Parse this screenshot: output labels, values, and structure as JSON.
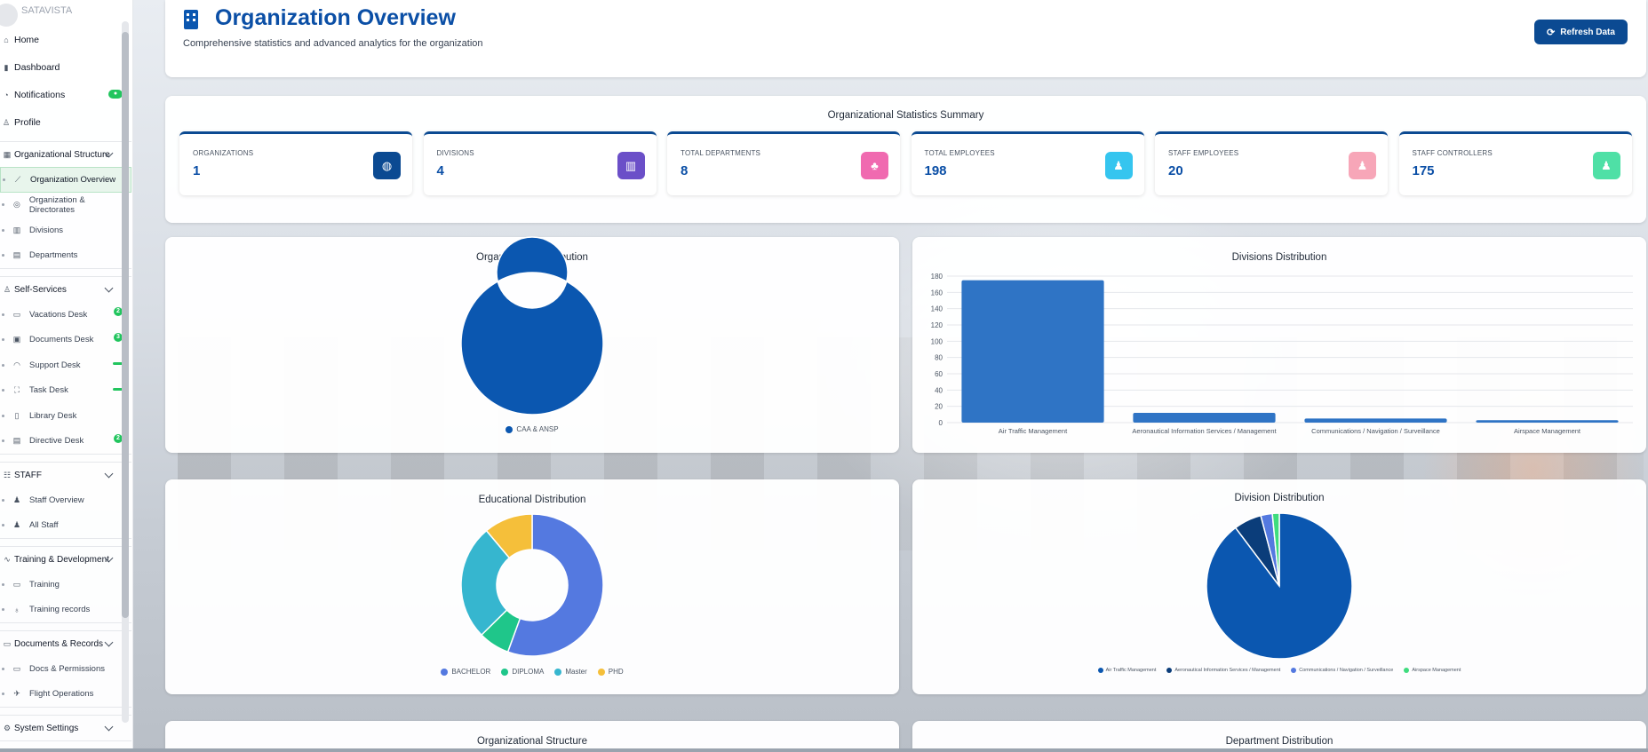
{
  "brand": {
    "name": "SATAVISTA"
  },
  "sidebar": {
    "top": [
      {
        "label": "Home",
        "icon": "home-icon",
        "glyph": "⌂"
      },
      {
        "label": "Dashboard",
        "icon": "chart-icon",
        "glyph": "▮"
      },
      {
        "label": "Notifications",
        "icon": "bell-icon",
        "glyph": "◔",
        "badge": "●"
      },
      {
        "label": "Profile",
        "icon": "user-icon",
        "glyph": "♙"
      }
    ],
    "groups": [
      {
        "label": "Organizational Structure",
        "icon": "building-icon",
        "glyph": "▦",
        "items": [
          {
            "label": "Organization Overview",
            "icon": "line-chart-icon",
            "glyph": "⟋",
            "active": true
          },
          {
            "label": "Organization & Directorates",
            "icon": "globe-icon",
            "glyph": "◎"
          },
          {
            "label": "Divisions",
            "icon": "building-icon",
            "glyph": "▥"
          },
          {
            "label": "Departments",
            "icon": "department-icon",
            "glyph": "▤"
          }
        ]
      },
      {
        "label": "Self-Services",
        "icon": "user-cog-icon",
        "glyph": "♙",
        "items": [
          {
            "label": "Vacations Desk",
            "icon": "calendar-icon",
            "glyph": "▭",
            "badge": "2"
          },
          {
            "label": "Documents Desk",
            "icon": "document-icon",
            "glyph": "▣",
            "badge": "3"
          },
          {
            "label": "Support Desk",
            "icon": "headset-icon",
            "glyph": "◠",
            "badge": "dash"
          },
          {
            "label": "Task Desk",
            "icon": "sitemap-icon",
            "glyph": "⛶",
            "badge": "dash"
          },
          {
            "label": "Library Desk",
            "icon": "book-icon",
            "glyph": "▯"
          },
          {
            "label": "Directive Desk",
            "icon": "file-icon",
            "glyph": "▤",
            "badge": "2"
          }
        ]
      },
      {
        "label": "STAFF",
        "icon": "users-icon",
        "glyph": "☷",
        "items": [
          {
            "label": "Staff Overview",
            "icon": "user-tie-icon",
            "glyph": "♟"
          },
          {
            "label": "All Staff",
            "icon": "users-icon",
            "glyph": "♟"
          }
        ]
      },
      {
        "label": "Training & Development",
        "icon": "activity-icon",
        "glyph": "∿",
        "items": [
          {
            "label": "Training",
            "icon": "calendar-icon",
            "glyph": "▭"
          },
          {
            "label": "Training records",
            "icon": "medal-icon",
            "glyph": "♁"
          }
        ]
      },
      {
        "label": "Documents & Records",
        "icon": "folder-icon",
        "glyph": "▭",
        "items": [
          {
            "label": "Docs & Permissions",
            "icon": "id-card-icon",
            "glyph": "▭"
          },
          {
            "label": "Flight Operations",
            "icon": "plane-icon",
            "glyph": "✈"
          }
        ]
      },
      {
        "label": "System Settings",
        "icon": "gear-icon",
        "glyph": "⚙",
        "items": []
      }
    ]
  },
  "header": {
    "title": "Organization Overview",
    "subtitle": "Comprehensive statistics and advanced analytics for the organization",
    "refresh_label": "Refresh Data",
    "refresh_icon": "⟳"
  },
  "summary": {
    "title": "Organizational Statistics Summary",
    "stats": [
      {
        "label": "ORGANIZATIONS",
        "value": "1",
        "icon": "globe-icon",
        "glyph": "◍",
        "color": "#0b4a92"
      },
      {
        "label": "DIVISIONS",
        "value": "4",
        "icon": "building-icon",
        "glyph": "▥",
        "color": "#6b4fc8"
      },
      {
        "label": "TOTAL DEPARTMENTS",
        "value": "8",
        "icon": "sitemap-icon",
        "glyph": "♣",
        "color": "#f06ab0"
      },
      {
        "label": "TOTAL EMPLOYEES",
        "value": "198",
        "icon": "users-icon",
        "glyph": "♟",
        "color": "#35c5ef"
      },
      {
        "label": "STAFF EMPLOYEES",
        "value": "20",
        "icon": "user-icon",
        "glyph": "♟",
        "color": "#f7a6b8"
      },
      {
        "label": "STAFF CONTROLLERS",
        "value": "175",
        "icon": "users-icon",
        "glyph": "♟",
        "color": "#4fe0a6"
      }
    ]
  },
  "chart_data": [
    {
      "type": "pie",
      "title": "Organization Distribution",
      "donut": true,
      "categories": [
        "CAA & ANSP"
      ],
      "values": [
        1
      ],
      "colors": [
        "#0b57b0"
      ],
      "legend": "bottom"
    },
    {
      "type": "bar",
      "title": "Divisions Distribution",
      "categories": [
        "Air Traffic Management",
        "Aeronautical Information Services / Management",
        "Communications / Navigation / Surveillance",
        "Airspace Management"
      ],
      "values": [
        175,
        12,
        5,
        3
      ],
      "ylim": [
        0,
        180
      ],
      "yticks": [
        0,
        20,
        40,
        60,
        80,
        100,
        120,
        140,
        160,
        180
      ],
      "grid": true,
      "color": "#2f74c5"
    },
    {
      "type": "pie",
      "title": "Educational Distribution",
      "donut": true,
      "categories": [
        "BACHELOR",
        "DIPLOMA",
        "Master",
        "PHD"
      ],
      "values": [
        110,
        14,
        52,
        22
      ],
      "colors": [
        "#5479e0",
        "#1fc68a",
        "#36b6cf",
        "#f5bf3a"
      ],
      "legend": "bottom"
    },
    {
      "type": "pie",
      "title": "Division Distribution",
      "donut": false,
      "categories": [
        "Air Traffic Management",
        "Aeronautical Information Services / Management",
        "Communications / Navigation / Surveillance",
        "Airspace Management"
      ],
      "values": [
        175,
        12,
        5,
        3
      ],
      "colors": [
        "#0b57b0",
        "#0b3d7a",
        "#5479e0",
        "#3fdc7e"
      ],
      "legend": "bottom"
    }
  ],
  "more": {
    "left_title": "Organizational Structure",
    "right_title": "Department Distribution"
  }
}
